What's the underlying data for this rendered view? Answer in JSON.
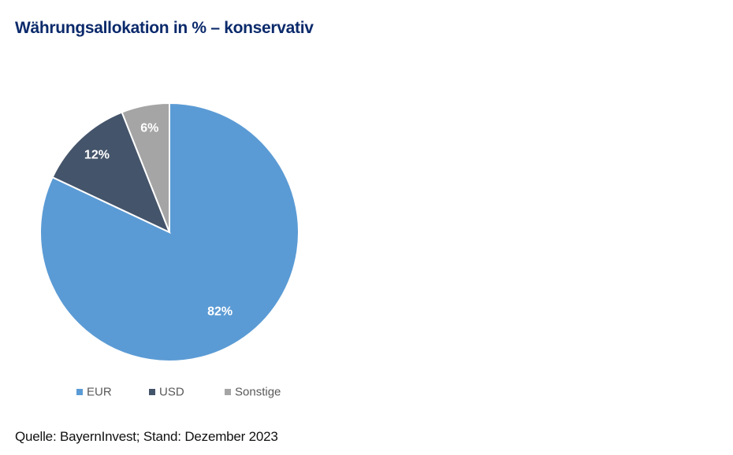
{
  "title": "Währungsallokation in % – konservativ",
  "source": "Quelle: BayernInvest; Stand: Dezember 2023",
  "chart_data": {
    "type": "pie",
    "title": "Währungsallokation in % – konservativ",
    "categories": [
      "EUR",
      "USD",
      "Sonstige"
    ],
    "values": [
      82,
      12,
      6
    ],
    "labels": [
      "82%",
      "12%",
      "6%"
    ],
    "colors": [
      "#5b9bd5",
      "#44546a",
      "#a5a5a5"
    ],
    "start_angle_deg": 0,
    "direction": "clockwise",
    "legend_position": "bottom",
    "unit": "%"
  }
}
